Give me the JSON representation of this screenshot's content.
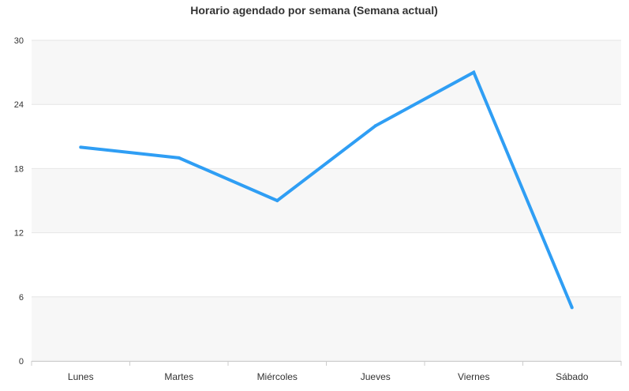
{
  "chart_data": {
    "type": "line",
    "title": "Horario agendado por semana (Semana actual)",
    "xlabel": "",
    "ylabel": "",
    "categories": [
      "Lunes",
      "Martes",
      "Miércoles",
      "Jueves",
      "Viernes",
      "Sábado"
    ],
    "series": [
      {
        "values": [
          20,
          19,
          15,
          22,
          27,
          5
        ],
        "color": "#2f9ef4"
      }
    ],
    "ylim": [
      0,
      30
    ],
    "yticks": [
      0,
      6,
      12,
      18,
      24,
      30
    ],
    "ytick_labels": [
      "0",
      "6",
      "12",
      "18",
      "24",
      "30"
    ],
    "grid": true,
    "band_colors": [
      "#f7f7f7",
      "#ffffff"
    ],
    "legend": "none"
  }
}
